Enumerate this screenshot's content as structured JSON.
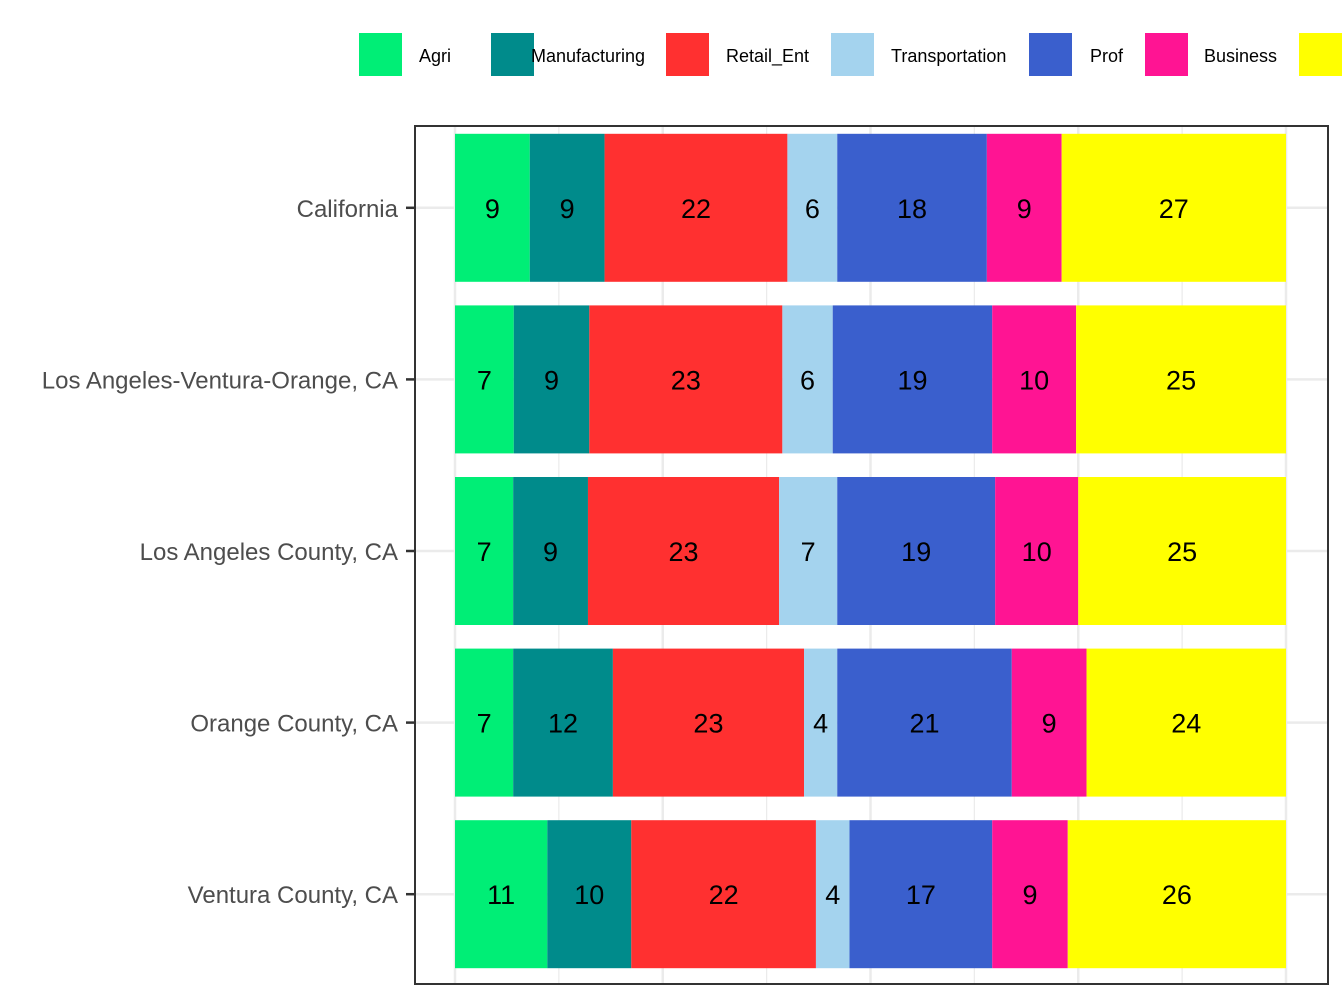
{
  "chart_data": {
    "type": "bar",
    "orientation": "horizontal",
    "stacked": "percent",
    "title": "",
    "xlabel": "",
    "ylabel": "",
    "xlim": [
      0,
      100
    ],
    "grid": true,
    "legend_position": "top",
    "categories": [
      "California",
      "Los Angeles-Ventura-Orange, CA",
      "Los Angeles County, CA",
      "Orange County, CA",
      "Ventura County, CA"
    ],
    "series": [
      {
        "name": "Agri",
        "color": "#00EE76",
        "values": [
          9,
          7,
          7,
          7,
          11
        ]
      },
      {
        "name": "Manufacturing",
        "color": "#008B8B",
        "values": [
          9,
          9,
          9,
          12,
          10
        ]
      },
      {
        "name": "Retail_Ent",
        "color": "#FF3030",
        "values": [
          22,
          23,
          23,
          23,
          22
        ]
      },
      {
        "name": "Transportation",
        "color": "#A4D3EE",
        "values": [
          6,
          6,
          7,
          4,
          4
        ]
      },
      {
        "name": "Prof",
        "color": "#3A5FCD",
        "values": [
          18,
          19,
          19,
          21,
          17
        ]
      },
      {
        "name": "Business",
        "color": "#FF1493",
        "values": [
          9,
          10,
          10,
          9,
          9
        ]
      },
      {
        "name": "",
        "color": "#FFFF00",
        "values": [
          27,
          25,
          25,
          24,
          26
        ]
      }
    ]
  }
}
